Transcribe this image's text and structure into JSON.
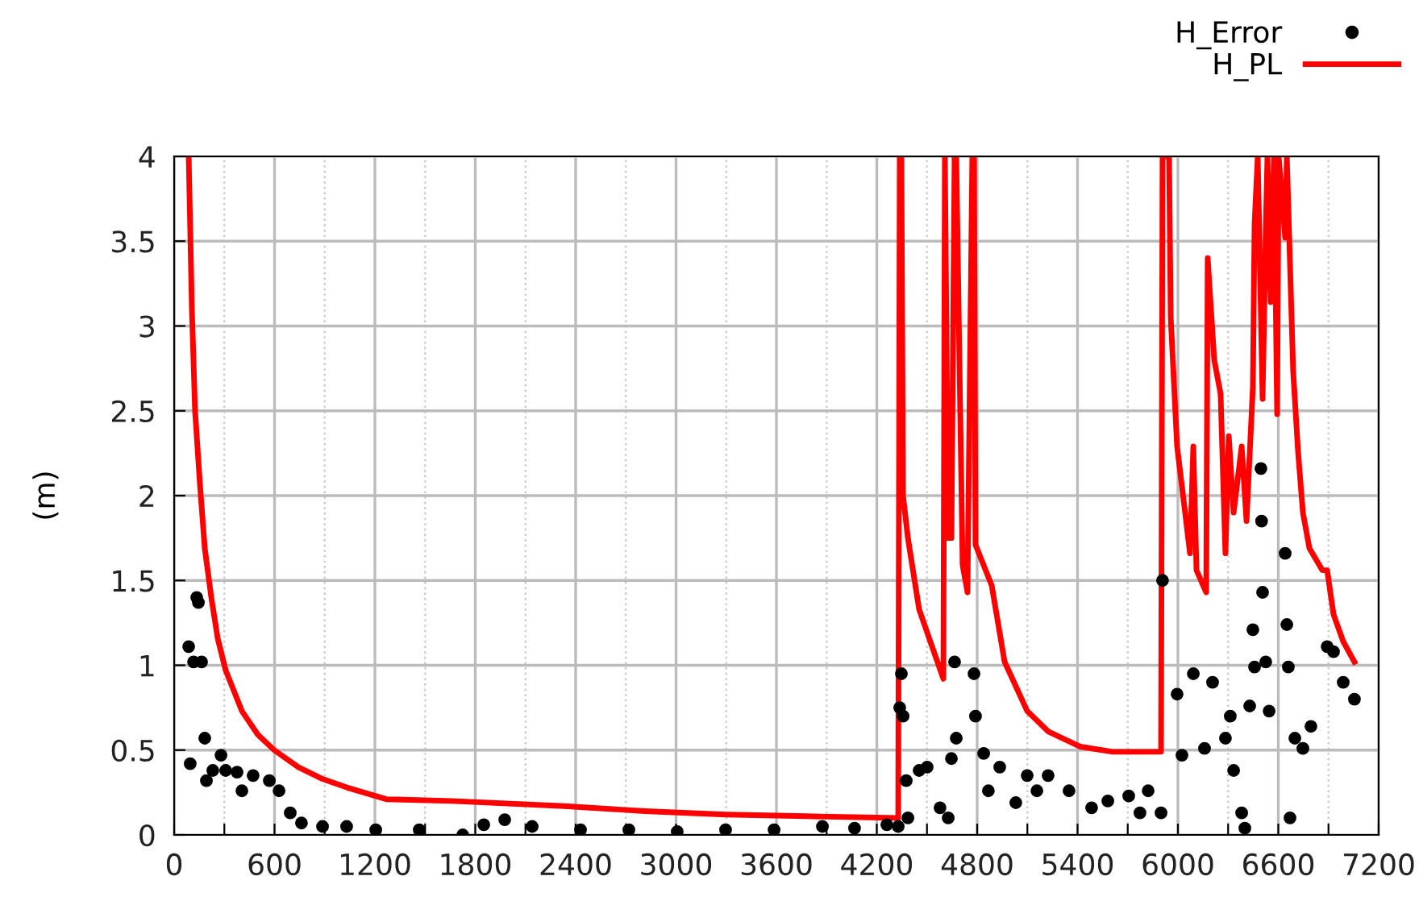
{
  "chart_data": {
    "type": "line",
    "ylabel": "(m)",
    "xlim": [
      0,
      7200
    ],
    "ylim": [
      0,
      4
    ],
    "xticks": [
      0,
      {
        "value": 300,
        "label": null
      },
      600,
      {
        "value": 900,
        "label": null
      },
      1200,
      {
        "value": 1500,
        "label": null
      },
      1800,
      {
        "value": 2100,
        "label": null
      },
      2400,
      {
        "value": 2700,
        "label": null
      },
      3000,
      {
        "value": 3300,
        "label": null
      },
      3600,
      {
        "value": 3900,
        "label": null
      },
      4200,
      {
        "value": 4500,
        "label": null
      },
      4800,
      {
        "value": 5100,
        "label": null
      },
      5400,
      {
        "value": 5700,
        "label": null
      },
      6000,
      {
        "value": 6300,
        "label": null
      },
      6600,
      {
        "value": 6900,
        "label": null
      },
      7200
    ],
    "yticks": [
      0,
      0.5,
      1,
      1.5,
      2,
      2.5,
      3,
      3.5,
      4
    ],
    "grid": true,
    "legend": "top right",
    "series": [
      {
        "name": "H_Error",
        "type": "scatter",
        "marker": "circle",
        "color": "#000000",
        "x": [
          87,
          96,
          116,
          135,
          145,
          164,
          183,
          193,
          231,
          280,
          308,
          376,
          405,
          472,
          569,
          627,
          694,
          761,
          887,
          1031,
          1205,
          1465,
          1725,
          1851,
          1976,
          2140,
          2429,
          2718,
          3007,
          3296,
          3586,
          3875,
          4067,
          4260,
          4328,
          4337,
          4347,
          4357,
          4376,
          4386,
          4453,
          4501,
          4578,
          4627,
          4646,
          4665,
          4675,
          4781,
          4790,
          4839,
          4867,
          4935,
          5031,
          5099,
          5157,
          5224,
          5349,
          5484,
          5581,
          5706,
          5773,
          5822,
          5899,
          5908,
          5995,
          6024,
          6092,
          6159,
          6207,
          6284,
          6313,
          6333,
          6381,
          6400,
          6429,
          6448,
          6458,
          6496,
          6500,
          6506,
          6525,
          6545,
          6641,
          6651,
          6660,
          6670,
          6699,
          6747,
          6795,
          6892,
          6930,
          6988,
          7055
        ],
        "values": [
          1.11,
          0.42,
          1.02,
          1.4,
          1.37,
          1.02,
          0.57,
          0.32,
          0.38,
          0.47,
          0.38,
          0.37,
          0.26,
          0.35,
          0.32,
          0.26,
          0.13,
          0.07,
          0.05,
          0.05,
          0.03,
          0.03,
          0.0,
          0.06,
          0.09,
          0.05,
          0.03,
          0.03,
          0.02,
          0.03,
          0.03,
          0.05,
          0.04,
          0.06,
          0.05,
          0.75,
          0.95,
          0.7,
          0.32,
          0.1,
          0.38,
          0.4,
          0.16,
          0.1,
          0.45,
          1.02,
          0.57,
          0.95,
          0.7,
          0.48,
          0.26,
          0.4,
          0.19,
          0.35,
          0.26,
          0.35,
          0.26,
          0.16,
          0.2,
          0.23,
          0.13,
          0.26,
          0.13,
          1.5,
          0.83,
          0.47,
          0.95,
          0.51,
          0.9,
          0.57,
          0.7,
          0.38,
          0.13,
          0.04,
          0.76,
          1.21,
          0.99,
          2.16,
          1.85,
          1.43,
          1.02,
          0.73,
          1.66,
          1.24,
          0.99,
          0.1,
          0.57,
          0.51,
          0.64,
          1.11,
          1.08,
          0.9,
          0.8
        ]
      },
      {
        "name": "H_PL",
        "marker": "none",
        "line_style": "solid",
        "color": "#ff0000",
        "x": [
          87,
          106,
          125,
          154,
          183,
          222,
          260,
          308,
          405,
          501,
          598,
          742,
          887,
          1031,
          1272,
          1658,
          2332,
          2814,
          3296,
          3778,
          4328,
          4337,
          4347,
          4357,
          4386,
          4453,
          4520,
          4598,
          4607,
          4617,
          4627,
          4646,
          4665,
          4675,
          4713,
          4742,
          4771,
          4781,
          4790,
          4887,
          4964,
          5099,
          5224,
          5417,
          5610,
          5899,
          5908,
          5947,
          5957,
          5995,
          6043,
          6072,
          6092,
          6111,
          6169,
          6178,
          6217,
          6255,
          6284,
          6304,
          6333,
          6381,
          6410,
          6448,
          6458,
          6477,
          6506,
          6525,
          6535,
          6554,
          6574,
          6593,
          6602,
          6641,
          6651,
          6689,
          6718,
          6747,
          6786,
          6863,
          6892,
          6930,
          6988,
          7055
        ],
        "values": [
          4.0,
          3.1,
          2.5,
          2.07,
          1.69,
          1.4,
          1.16,
          0.97,
          0.73,
          0.59,
          0.5,
          0.4,
          0.33,
          0.28,
          0.21,
          0.2,
          0.17,
          0.14,
          0.12,
          0.11,
          0.1,
          4.0,
          4.0,
          2.0,
          1.75,
          1.33,
          1.14,
          0.92,
          4.0,
          2.9,
          1.75,
          1.75,
          4.0,
          4.0,
          1.59,
          1.43,
          4.0,
          4.0,
          1.71,
          1.47,
          1.02,
          0.73,
          0.61,
          0.52,
          0.49,
          0.49,
          4.0,
          4.0,
          3.05,
          2.29,
          1.9,
          1.66,
          2.29,
          1.56,
          1.43,
          3.4,
          2.8,
          2.6,
          1.66,
          2.35,
          1.9,
          2.29,
          1.85,
          2.64,
          3.6,
          4.0,
          2.57,
          3.57,
          4.0,
          3.14,
          4.0,
          2.48,
          4.0,
          3.52,
          4.0,
          2.73,
          2.26,
          1.9,
          1.69,
          1.56,
          1.56,
          1.3,
          1.14,
          1.02
        ]
      }
    ]
  }
}
